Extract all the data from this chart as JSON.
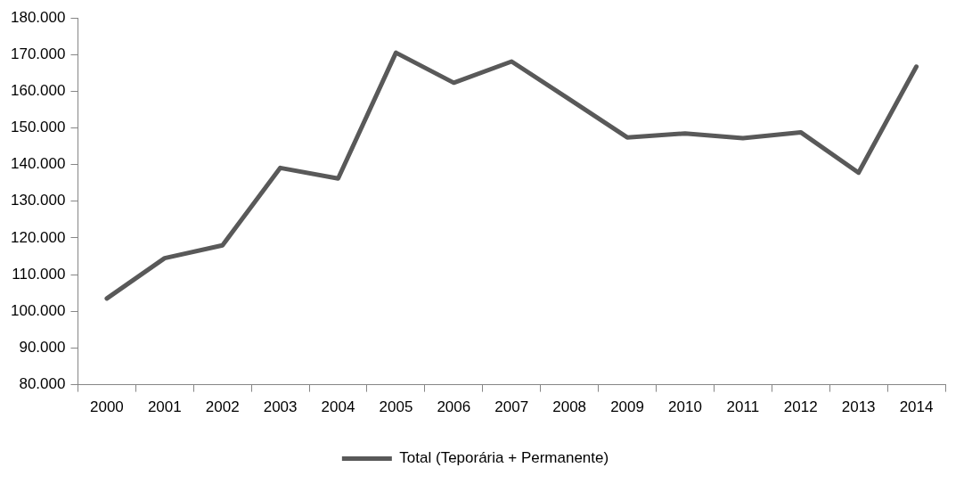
{
  "chart_data": {
    "type": "line",
    "categories": [
      "2000",
      "2001",
      "2002",
      "2003",
      "2004",
      "2005",
      "2006",
      "2007",
      "2008",
      "2009",
      "2010",
      "2011",
      "2012",
      "2013",
      "2014"
    ],
    "series": [
      {
        "name": "Total (Teporária + Permanente)",
        "color": "#595959",
        "values": [
          103500,
          114500,
          118000,
          139100,
          136200,
          170500,
          162300,
          168100,
          157800,
          147400,
          148500,
          147200,
          148800,
          137800,
          166700
        ]
      }
    ],
    "ylim": [
      80000,
      180000
    ],
    "yticks": [
      {
        "value": 80000,
        "label": "80.000"
      },
      {
        "value": 90000,
        "label": "90.000"
      },
      {
        "value": 100000,
        "label": "100.000"
      },
      {
        "value": 110000,
        "label": "110.000"
      },
      {
        "value": 120000,
        "label": "120.000"
      },
      {
        "value": 130000,
        "label": "130.000"
      },
      {
        "value": 140000,
        "label": "140.000"
      },
      {
        "value": 150000,
        "label": "150.000"
      },
      {
        "value": 160000,
        "label": "160.000"
      },
      {
        "value": 170000,
        "label": "170.000"
      },
      {
        "value": 180000,
        "label": "180.000"
      }
    ],
    "legend": "bottom",
    "marker": "none",
    "line_style": "solid"
  }
}
